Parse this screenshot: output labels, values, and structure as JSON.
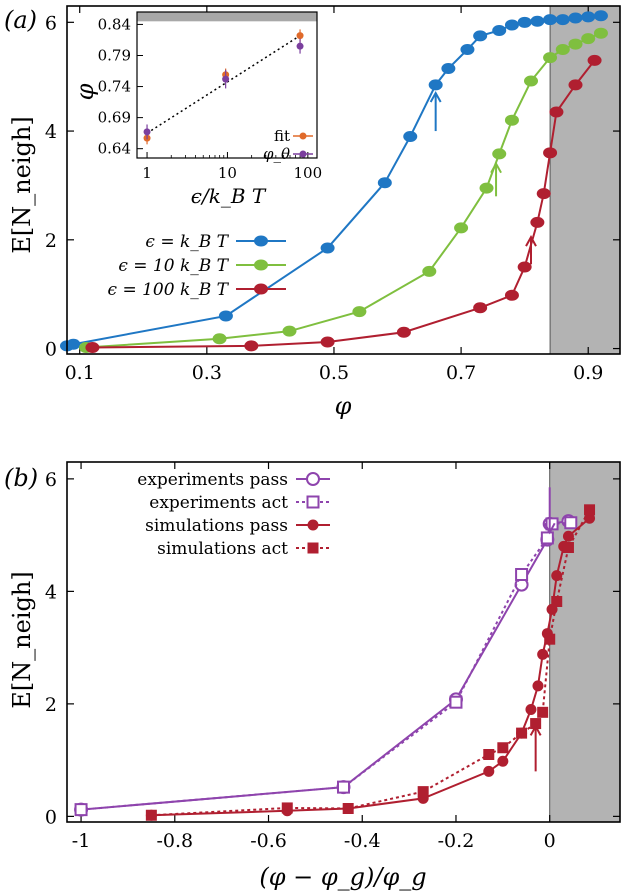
{
  "chart_data": [
    {
      "panel_label": "(a)",
      "type": "line",
      "xlabel": "φ",
      "ylabel": "E[N_neigh]",
      "xlim": [
        0.08,
        0.95
      ],
      "ylim": [
        -0.1,
        6.3
      ],
      "x_ticks": [
        "0.1",
        "0.3",
        "0.5",
        "0.7",
        "0.9"
      ],
      "y_ticks": [
        "0",
        "2",
        "4",
        "6"
      ],
      "shaded_region_x": [
        0.84,
        0.95
      ],
      "legend_position": "middle-left",
      "series": [
        {
          "name": "ϵ = k_B T",
          "color": "#1f77c4",
          "x": [
            0.08,
            0.09,
            0.33,
            0.49,
            0.58,
            0.62,
            0.66,
            0.68,
            0.71,
            0.73,
            0.76,
            0.78,
            0.8,
            0.82,
            0.84,
            0.86,
            0.88,
            0.9,
            0.92
          ],
          "y": [
            0.05,
            0.08,
            0.6,
            1.85,
            3.05,
            3.9,
            4.85,
            5.15,
            5.5,
            5.75,
            5.85,
            5.95,
            6.0,
            6.02,
            6.05,
            6.05,
            6.08,
            6.1,
            6.12
          ]
        },
        {
          "name": "ϵ = 10 k_B T",
          "color": "#7fbf3f",
          "x": [
            0.11,
            0.32,
            0.43,
            0.54,
            0.65,
            0.7,
            0.74,
            0.76,
            0.78,
            0.81,
            0.84,
            0.86,
            0.88,
            0.9,
            0.92
          ],
          "y": [
            0.02,
            0.18,
            0.32,
            0.68,
            1.42,
            2.22,
            2.95,
            3.58,
            4.2,
            4.92,
            5.35,
            5.5,
            5.6,
            5.7,
            5.8
          ]
        },
        {
          "name": "ϵ = 100 k_B T",
          "color": "#b01f30",
          "x": [
            0.12,
            0.37,
            0.49,
            0.61,
            0.73,
            0.78,
            0.8,
            0.82,
            0.83,
            0.84,
            0.85,
            0.88,
            0.91
          ],
          "y": [
            0.02,
            0.05,
            0.12,
            0.3,
            0.75,
            0.98,
            1.5,
            2.32,
            2.85,
            3.6,
            4.35,
            4.85,
            5.3
          ]
        }
      ],
      "arrows": [
        {
          "x": 0.66,
          "y_from": 4.0,
          "y_to": 4.7,
          "color": "#1f77c4"
        },
        {
          "x": 0.755,
          "y_from": 2.8,
          "y_to": 3.4,
          "color": "#7fbf3f"
        },
        {
          "x": 0.81,
          "y_from": 1.55,
          "y_to": 2.05,
          "color": "#b01f30"
        }
      ],
      "inset": {
        "type": "scatter",
        "xlabel": "ϵ/k_B T",
        "ylabel": "φ",
        "xscale": "log",
        "xlim": [
          0.75,
          130
        ],
        "ylim": [
          0.625,
          0.86
        ],
        "x_ticks": [
          "1",
          "10",
          "100"
        ],
        "y_ticks": [
          "0.64",
          "0.69",
          "0.74",
          "0.79",
          "0.84"
        ],
        "shaded_region_y": [
          0.845,
          0.86
        ],
        "legend": [
          "fit",
          "φ_θ"
        ],
        "fit_line": {
          "x": [
            1,
            80
          ],
          "y": [
            0.665,
            0.822
          ]
        },
        "series": [
          {
            "name": "fit",
            "color": "#e06a2a",
            "x": [
              1,
              9.5,
              80
            ],
            "y": [
              0.657,
              0.759,
              0.822
            ],
            "err": [
              0.01,
              0.01,
              0.01
            ]
          },
          {
            "name": "φ_θ",
            "color": "#7b3f9e",
            "x": [
              1,
              9.5,
              80
            ],
            "y": [
              0.667,
              0.752,
              0.805
            ],
            "err": [
              0.012,
              0.015,
              0.012
            ]
          }
        ]
      }
    },
    {
      "panel_label": "(b)",
      "type": "line",
      "xlabel": "(φ − φ_g)/φ_g",
      "ylabel": "E[N_neigh]",
      "xlim": [
        -1.03,
        0.15
      ],
      "ylim": [
        -0.1,
        6.3
      ],
      "x_ticks": [
        "-1",
        "-0.8",
        "-0.6",
        "-0.4",
        "-0.2",
        "0"
      ],
      "y_ticks": [
        "0",
        "2",
        "4",
        "6"
      ],
      "shaded_region_x": [
        0,
        0.15
      ],
      "legend_position": "top-left",
      "series": [
        {
          "name": "experiments pass",
          "color": "#8e44ad",
          "marker": "open-circle",
          "style": "solid",
          "x": [
            -1.0,
            -0.44,
            -0.2,
            -0.06,
            -0.005,
            0.0,
            0.04
          ],
          "y": [
            0.12,
            0.52,
            2.08,
            4.12,
            4.92,
            5.2,
            5.25
          ]
        },
        {
          "name": "experiments act",
          "color": "#8e44ad",
          "marker": "open-square",
          "style": "dotted",
          "x": [
            -1.0,
            -0.44,
            -0.2,
            -0.06,
            -0.005,
            0.005,
            0.045
          ],
          "y": [
            0.12,
            0.52,
            2.03,
            4.3,
            4.95,
            5.2,
            5.22
          ]
        },
        {
          "name": "simulations pass",
          "color": "#b01f30",
          "marker": "filled-circle",
          "style": "solid",
          "x": [
            -0.85,
            -0.56,
            -0.43,
            -0.27,
            -0.13,
            -0.1,
            -0.06,
            -0.04,
            -0.025,
            -0.015,
            -0.005,
            0.005,
            0.015,
            0.03,
            0.04,
            0.085
          ],
          "y": [
            0.02,
            0.1,
            0.14,
            0.32,
            0.8,
            0.98,
            1.48,
            1.9,
            2.32,
            2.88,
            3.25,
            3.68,
            4.28,
            4.8,
            4.98,
            5.3
          ]
        },
        {
          "name": "simulations act",
          "color": "#b01f30",
          "marker": "filled-square",
          "style": "dotted",
          "x": [
            -0.85,
            -0.56,
            -0.43,
            -0.27,
            -0.13,
            -0.1,
            -0.06,
            -0.03,
            -0.015,
            0.0,
            0.015,
            0.04,
            0.085
          ],
          "y": [
            0.02,
            0.15,
            0.14,
            0.44,
            1.1,
            1.22,
            1.48,
            1.65,
            1.85,
            3.15,
            3.82,
            4.78,
            5.45
          ]
        }
      ],
      "arrows": [
        {
          "x": 0.0,
          "y_from": 5.85,
          "y_to": 5.05,
          "color": "#8e44ad"
        },
        {
          "x": -0.03,
          "y_from": 0.8,
          "y_to": 1.6,
          "color": "#b01f30"
        }
      ]
    }
  ]
}
